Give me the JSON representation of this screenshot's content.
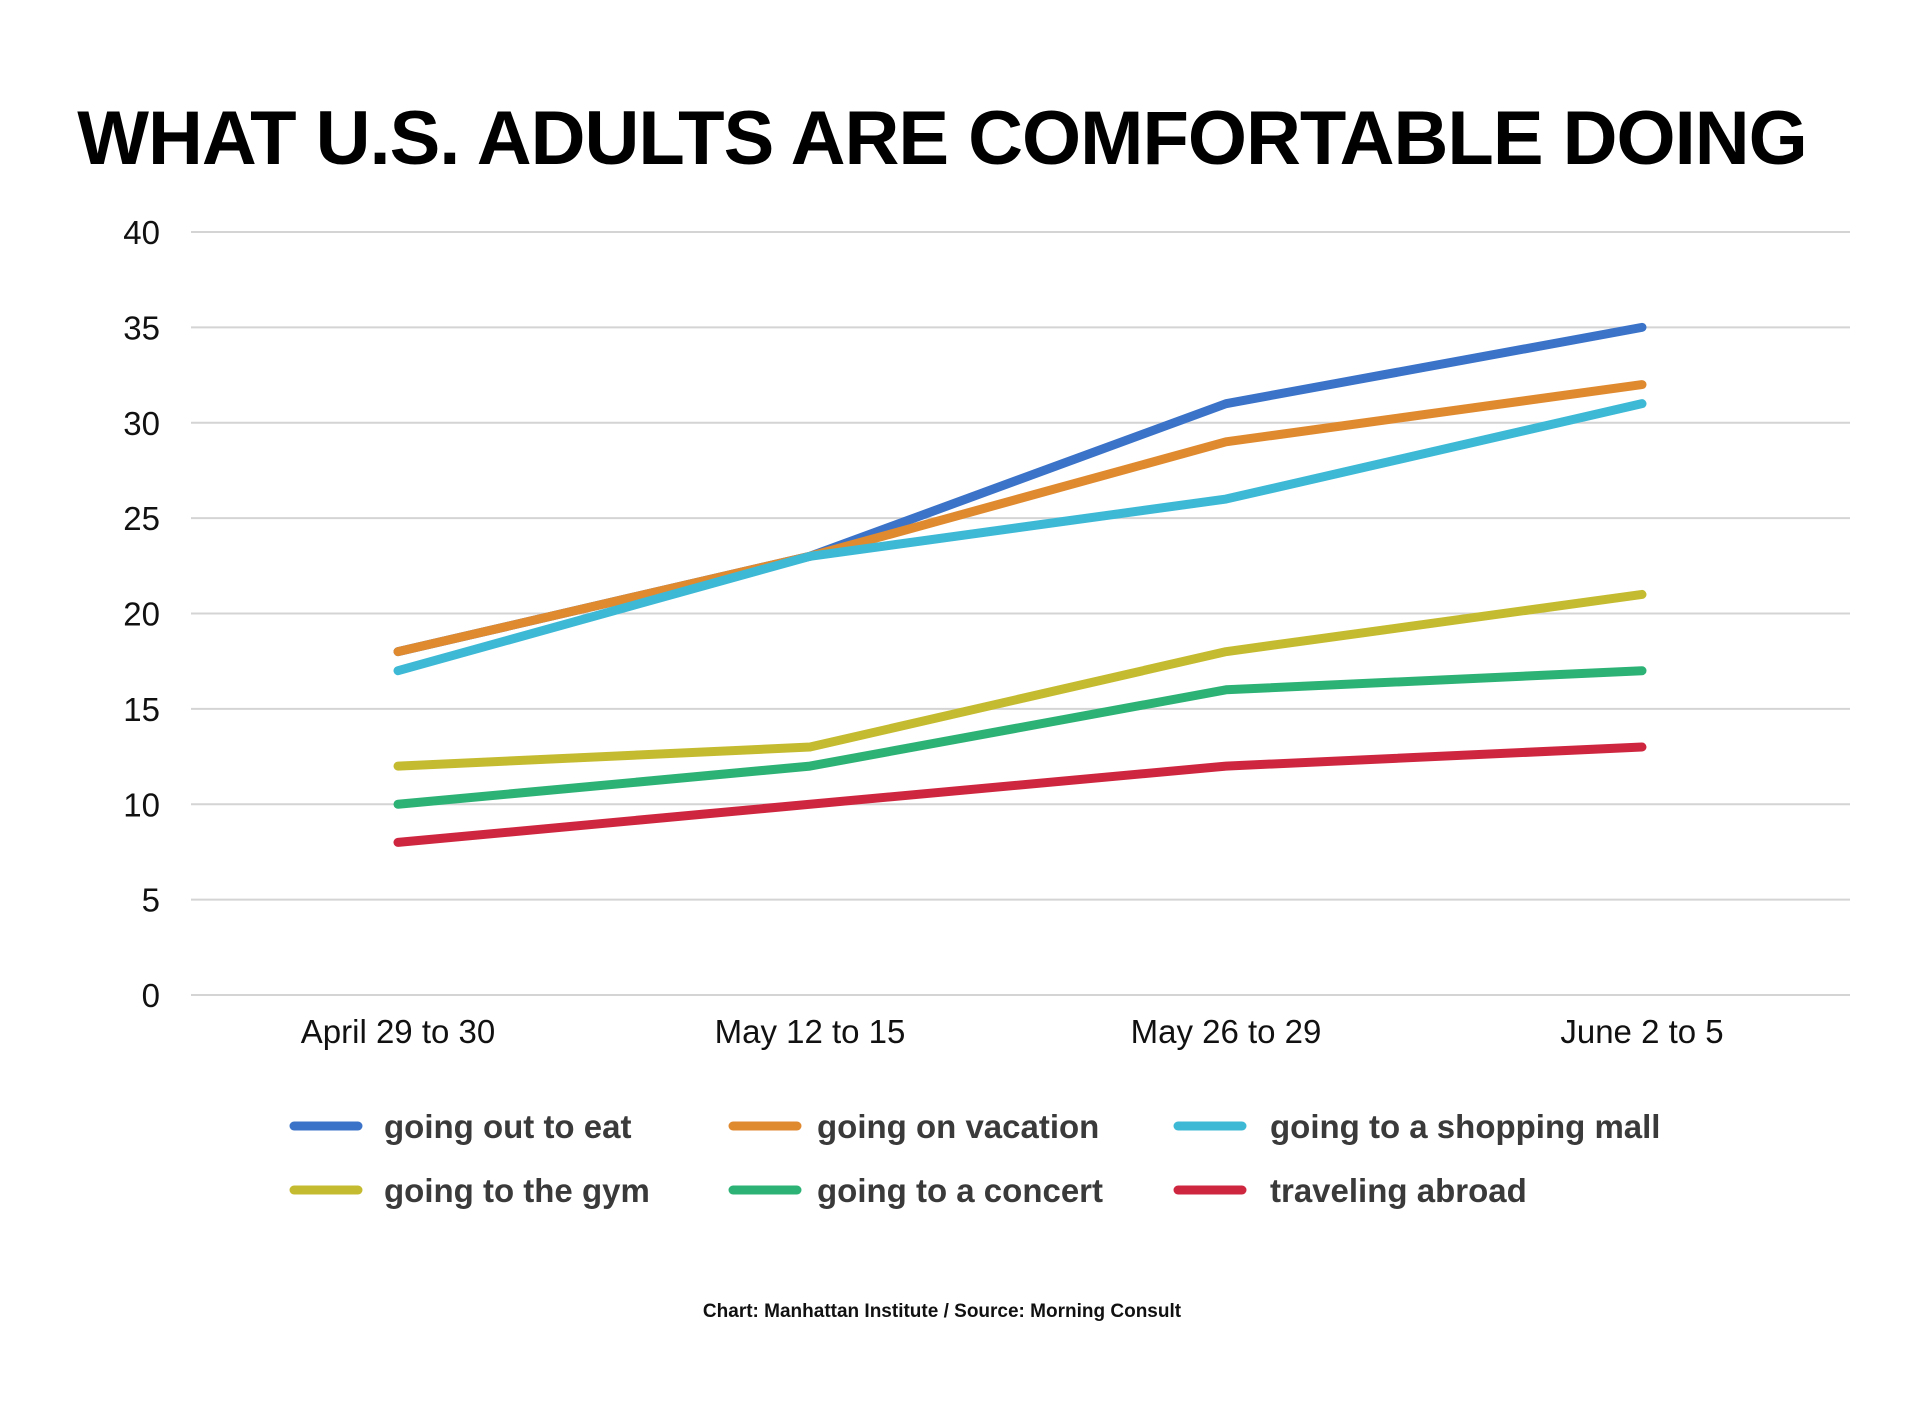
{
  "chart_data": {
    "type": "line",
    "title": "WHAT U.S. ADULTS ARE COMFORTABLE DOING",
    "categories": [
      "April 29 to 30",
      "May 12 to 15",
      "May 26 to 29",
      "June 2 to 5"
    ],
    "ylim": [
      0,
      40
    ],
    "yticks": [
      0,
      5,
      10,
      15,
      20,
      25,
      30,
      35,
      40
    ],
    "xlabel": "",
    "ylabel": "",
    "grid": true,
    "legend_position": "bottom",
    "series": [
      {
        "name": "going out to eat",
        "color": "#3b73c9",
        "values": [
          18,
          23,
          31,
          35
        ]
      },
      {
        "name": "going on vacation",
        "color": "#e08a30",
        "values": [
          18,
          23,
          29,
          32
        ]
      },
      {
        "name": "going to a shopping mall",
        "color": "#3db9d6",
        "values": [
          17,
          23,
          26,
          31
        ]
      },
      {
        "name": "going to the gym",
        "color": "#c5bb30",
        "values": [
          12,
          13,
          18,
          21
        ]
      },
      {
        "name": "going to a concert",
        "color": "#2db276",
        "values": [
          10,
          12,
          16,
          17
        ]
      },
      {
        "name": "traveling abroad",
        "color": "#cf2640",
        "values": [
          8,
          10,
          12,
          13
        ]
      }
    ],
    "credit": "Chart: Manhattan Institute  /  Source: Morning Consult"
  }
}
